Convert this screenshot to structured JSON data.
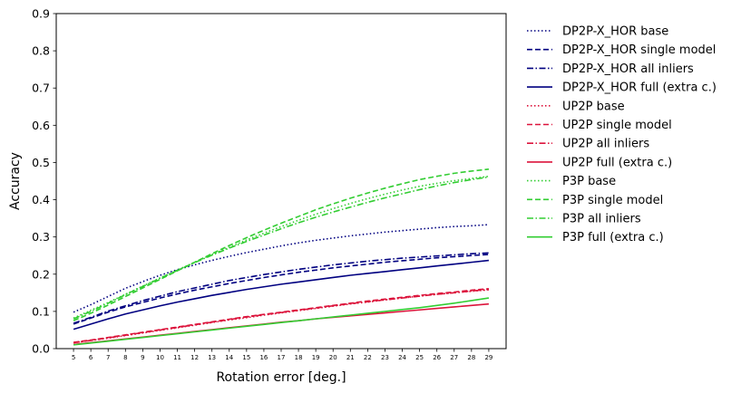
{
  "chart_data": {
    "type": "line",
    "title": "",
    "xlabel": "Rotation error [deg.]",
    "ylabel": "Accuracy",
    "xlim": [
      4,
      30
    ],
    "ylim": [
      0,
      0.9
    ],
    "grid": false,
    "legend_position": "outside-right",
    "x": [
      5,
      6,
      7,
      8,
      9,
      10,
      11,
      12,
      13,
      14,
      15,
      16,
      17,
      18,
      19,
      20,
      21,
      22,
      23,
      24,
      25,
      26,
      27,
      28,
      29
    ],
    "x_tick_labels": [
      "5",
      "6",
      "7",
      "8",
      "9",
      "10",
      "11",
      "12",
      "13",
      "14",
      "15",
      "16",
      "17",
      "18",
      "19",
      "20",
      "21",
      "22",
      "23",
      "24",
      "25",
      "26",
      "27",
      "28",
      "29"
    ],
    "y_tick_labels": [
      "0.0",
      "0.1",
      "0.2",
      "0.3",
      "0.4",
      "0.5",
      "0.6",
      "0.7",
      "0.8",
      "0.9"
    ],
    "y_ticks": [
      0,
      0.1,
      0.2,
      0.3,
      0.4,
      0.5,
      0.6,
      0.7,
      0.8,
      0.9
    ],
    "series": [
      {
        "name": "DP2P-X_HOR base",
        "color": "#000080",
        "dash": "dotted",
        "values": [
          0.098,
          0.118,
          0.14,
          0.162,
          0.18,
          0.197,
          0.212,
          0.225,
          0.237,
          0.248,
          0.258,
          0.267,
          0.276,
          0.284,
          0.291,
          0.297,
          0.303,
          0.308,
          0.313,
          0.317,
          0.321,
          0.325,
          0.328,
          0.33,
          0.333
        ]
      },
      {
        "name": "DP2P-X_HOR single model",
        "color": "#000080",
        "dash": "dashed",
        "values": [
          0.066,
          0.082,
          0.098,
          0.112,
          0.124,
          0.136,
          0.147,
          0.157,
          0.166,
          0.175,
          0.183,
          0.191,
          0.198,
          0.205,
          0.211,
          0.217,
          0.222,
          0.227,
          0.232,
          0.236,
          0.24,
          0.244,
          0.247,
          0.25,
          0.253
        ]
      },
      {
        "name": "DP2P-X_HOR all inliers",
        "color": "#000080",
        "dash": "dashdot",
        "values": [
          0.068,
          0.084,
          0.101,
          0.115,
          0.129,
          0.141,
          0.153,
          0.163,
          0.173,
          0.183,
          0.191,
          0.199,
          0.206,
          0.213,
          0.219,
          0.225,
          0.23,
          0.235,
          0.239,
          0.243,
          0.246,
          0.249,
          0.252,
          0.255,
          0.257
        ]
      },
      {
        "name": "DP2P-X_HOR full (extra c.)",
        "color": "#000080",
        "dash": "solid",
        "values": [
          0.052,
          0.066,
          0.08,
          0.093,
          0.104,
          0.115,
          0.125,
          0.134,
          0.143,
          0.151,
          0.159,
          0.166,
          0.173,
          0.179,
          0.185,
          0.191,
          0.197,
          0.202,
          0.207,
          0.212,
          0.217,
          0.222,
          0.227,
          0.232,
          0.237
        ]
      },
      {
        "name": "UP2P base",
        "color": "#dc143c",
        "dash": "dotted",
        "values": [
          0.016,
          0.022,
          0.028,
          0.035,
          0.042,
          0.049,
          0.056,
          0.063,
          0.07,
          0.077,
          0.083,
          0.09,
          0.096,
          0.102,
          0.108,
          0.114,
          0.12,
          0.125,
          0.131,
          0.136,
          0.141,
          0.146,
          0.15,
          0.154,
          0.158
        ]
      },
      {
        "name": "UP2P single model",
        "color": "#dc143c",
        "dash": "dashed",
        "values": [
          0.017,
          0.023,
          0.03,
          0.037,
          0.044,
          0.051,
          0.058,
          0.065,
          0.072,
          0.079,
          0.086,
          0.092,
          0.098,
          0.104,
          0.11,
          0.116,
          0.122,
          0.128,
          0.133,
          0.138,
          0.143,
          0.148,
          0.152,
          0.157,
          0.161
        ]
      },
      {
        "name": "UP2P all inliers",
        "color": "#dc143c",
        "dash": "dashdot",
        "values": [
          0.016,
          0.022,
          0.029,
          0.036,
          0.043,
          0.05,
          0.057,
          0.064,
          0.071,
          0.078,
          0.085,
          0.091,
          0.097,
          0.103,
          0.109,
          0.115,
          0.121,
          0.126,
          0.131,
          0.136,
          0.141,
          0.146,
          0.15,
          0.155,
          0.159
        ]
      },
      {
        "name": "UP2P full (extra c.)",
        "color": "#dc143c",
        "dash": "solid",
        "values": [
          0.011,
          0.016,
          0.021,
          0.026,
          0.031,
          0.036,
          0.041,
          0.046,
          0.051,
          0.056,
          0.061,
          0.066,
          0.071,
          0.075,
          0.08,
          0.084,
          0.088,
          0.092,
          0.096,
          0.1,
          0.104,
          0.108,
          0.112,
          0.116,
          0.12
        ]
      },
      {
        "name": "P3P base",
        "color": "#32cd32",
        "dash": "dotted",
        "values": [
          0.082,
          0.103,
          0.124,
          0.146,
          0.168,
          0.19,
          0.211,
          0.232,
          0.253,
          0.272,
          0.292,
          0.31,
          0.328,
          0.345,
          0.361,
          0.376,
          0.39,
          0.403,
          0.415,
          0.426,
          0.436,
          0.444,
          0.451,
          0.457,
          0.463
        ]
      },
      {
        "name": "P3P single model",
        "color": "#32cd32",
        "dash": "dashed",
        "values": [
          0.075,
          0.095,
          0.117,
          0.14,
          0.163,
          0.186,
          0.209,
          0.232,
          0.255,
          0.277,
          0.298,
          0.318,
          0.337,
          0.355,
          0.373,
          0.389,
          0.404,
          0.418,
          0.431,
          0.443,
          0.454,
          0.463,
          0.471,
          0.477,
          0.482
        ]
      },
      {
        "name": "P3P all inliers",
        "color": "#32cd32",
        "dash": "dashdot",
        "values": [
          0.08,
          0.1,
          0.122,
          0.145,
          0.167,
          0.189,
          0.21,
          0.231,
          0.251,
          0.27,
          0.288,
          0.305,
          0.322,
          0.338,
          0.353,
          0.367,
          0.38,
          0.393,
          0.405,
          0.416,
          0.427,
          0.437,
          0.446,
          0.454,
          0.461
        ]
      },
      {
        "name": "P3P full (extra c.)",
        "color": "#32cd32",
        "dash": "solid",
        "values": [
          0.01,
          0.015,
          0.02,
          0.025,
          0.03,
          0.035,
          0.04,
          0.045,
          0.05,
          0.055,
          0.06,
          0.065,
          0.07,
          0.075,
          0.08,
          0.085,
          0.09,
          0.095,
          0.1,
          0.105,
          0.11,
          0.116,
          0.122,
          0.129,
          0.136
        ]
      }
    ]
  }
}
